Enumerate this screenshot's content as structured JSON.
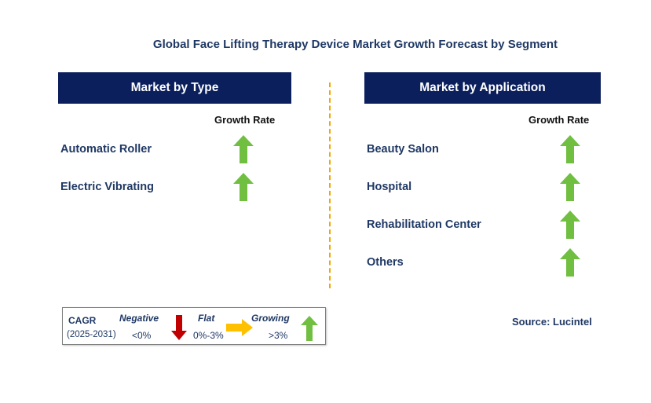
{
  "title": "Global Face Lifting Therapy Device Market Growth Forecast by Segment",
  "type_panel": {
    "header": "Market by Type",
    "growth_label": "Growth Rate",
    "items": [
      {
        "label": "Automatic Roller",
        "trend": "growing"
      },
      {
        "label": "Electric Vibrating",
        "trend": "growing"
      }
    ]
  },
  "application_panel": {
    "header": "Market by Application",
    "growth_label": "Growth Rate",
    "items": [
      {
        "label": "Beauty Salon",
        "trend": "growing"
      },
      {
        "label": "Hospital",
        "trend": "growing"
      },
      {
        "label": "Rehabilitation Center",
        "trend": "growing"
      },
      {
        "label": "Others",
        "trend": "growing"
      }
    ]
  },
  "legend": {
    "cagr_label": "CAGR",
    "period": "(2025-2031)",
    "negative": {
      "label": "Negative",
      "range": "<0%",
      "color": "#c00000",
      "icon": "arrow-down-icon"
    },
    "flat": {
      "label": "Flat",
      "range": "0%-3%",
      "color": "#ffc000",
      "icon": "arrow-right-icon"
    },
    "growing": {
      "label": "Growing",
      "range": ">3%",
      "color": "#70bf41",
      "icon": "arrow-up-icon"
    }
  },
  "source": "Source: Lucintel",
  "colors": {
    "header_bg": "#0b1f5c",
    "divider": "#f0a800",
    "text": "#1f3864"
  }
}
